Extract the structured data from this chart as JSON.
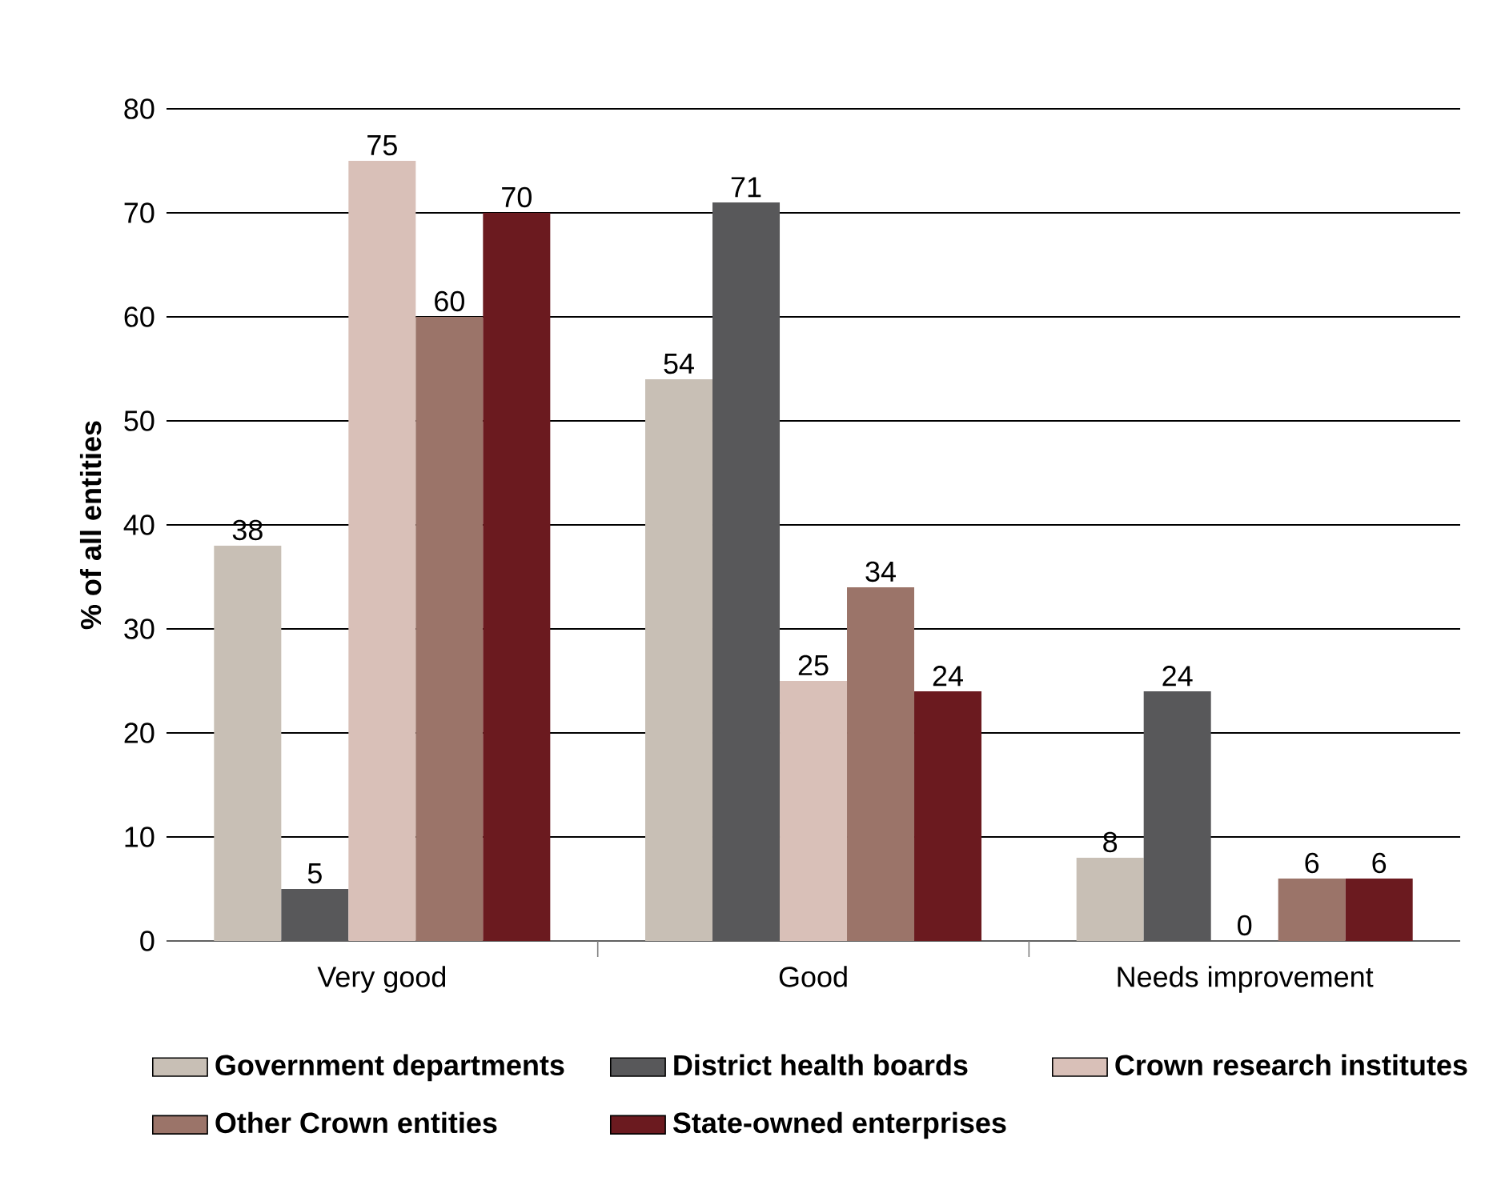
{
  "chart_data": {
    "type": "bar",
    "ylabel": "% of all entities",
    "categories": [
      "Very good",
      "Good",
      "Needs improvement"
    ],
    "series": [
      {
        "name": "Government departments",
        "color": "#c8bfb5",
        "values": [
          38,
          54,
          8
        ]
      },
      {
        "name": "District health boards",
        "color": "#58585a",
        "values": [
          5,
          71,
          24
        ]
      },
      {
        "name": "Crown research institutes",
        "color": "#d9c0b8",
        "values": [
          75,
          25,
          0
        ]
      },
      {
        "name": "Other Crown entities",
        "color": "#9b7469",
        "values": [
          60,
          34,
          6
        ]
      },
      {
        "name": "State-owned enterprises",
        "color": "#6b1a1f",
        "values": [
          70,
          24,
          6
        ]
      }
    ],
    "ylim": [
      0,
      80
    ],
    "yticks": [
      0,
      10,
      20,
      30,
      40,
      50,
      60,
      70,
      80
    ],
    "grid": "y",
    "legend": "bottom",
    "data_labels": true
  }
}
